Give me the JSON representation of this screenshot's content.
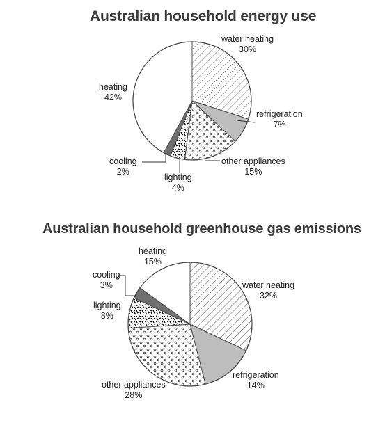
{
  "chart_data": [
    {
      "type": "pie",
      "title": "Australian household energy use",
      "slices": [
        {
          "label": "water heating",
          "value": 30,
          "display": "30%"
        },
        {
          "label": "refrigeration",
          "value": 7,
          "display": "7%"
        },
        {
          "label": "other appliances",
          "value": 15,
          "display": "15%"
        },
        {
          "label": "lighting",
          "value": 4,
          "display": "4%"
        },
        {
          "label": "cooling",
          "value": 2,
          "display": "2%"
        },
        {
          "label": "heating",
          "value": 42,
          "display": "42%"
        }
      ]
    },
    {
      "type": "pie",
      "title": "Australian household greenhouse gas emissions",
      "slices": [
        {
          "label": "water heating",
          "value": 32,
          "display": "32%"
        },
        {
          "label": "refrigeration",
          "value": 14,
          "display": "14%"
        },
        {
          "label": "other appliances",
          "value": 28,
          "display": "28%"
        },
        {
          "label": "lighting",
          "value": 8,
          "display": "8%"
        },
        {
          "label": "cooling",
          "value": 3,
          "display": "3%"
        },
        {
          "label": "heating",
          "value": 15,
          "display": "15%"
        }
      ]
    }
  ],
  "patterns": {
    "water heating": "diagonal-hatch",
    "refrigeration": "solid-grey",
    "other appliances": "dots",
    "lighting": "dashes-black",
    "cooling": "dark-grey",
    "heating": "white"
  },
  "colors": {
    "refrigeration": "#bdbdbd",
    "cooling": "#707070",
    "outline": "#4a4a4a",
    "title": "#3a3a3a"
  }
}
